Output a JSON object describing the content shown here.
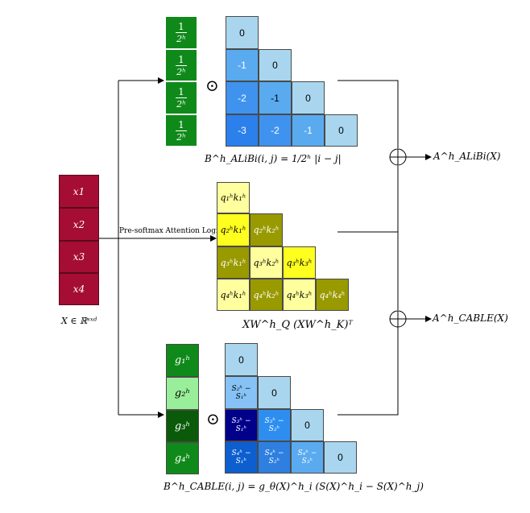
{
  "input": {
    "rows": [
      "x1",
      "x2",
      "x3",
      "x4"
    ],
    "caption": "X ∈ ℝˢˣᵈ",
    "color": "#a50d35"
  },
  "alibi": {
    "slopes": [
      {
        "num": "1",
        "den": "2ʰ"
      },
      {
        "num": "1",
        "den": "2ʰ"
      },
      {
        "num": "1",
        "den": "2ʰ"
      },
      {
        "num": "1",
        "den": "2ʰ"
      }
    ],
    "slope_color": "#0f8a1a",
    "hadamard": "⊙",
    "matrix": [
      [
        "0"
      ],
      [
        "-1",
        "0"
      ],
      [
        "-2",
        "-1",
        "0"
      ],
      [
        "-3",
        "-2",
        "-1",
        "0"
      ]
    ],
    "matrix_colors": [
      [
        "#a9d6ee"
      ],
      [
        "#5aaaf0",
        "#a9d6ee"
      ],
      [
        "#3f93ee",
        "#5aaaf0",
        "#a9d6ee"
      ],
      [
        "#2b80ec",
        "#3f93ee",
        "#5aaaf0",
        "#a9d6ee"
      ]
    ],
    "caption": "B^h_ALiBi(i, j) = 1/2ʰ |i − j|",
    "output": "A^h_ALiBi(X)"
  },
  "logits": {
    "arrow_label": "Pre-softmax Attention Logits",
    "matrix": [
      [
        "q₁ʰk₁ʰ"
      ],
      [
        "q₂ʰk₁ʰ",
        "q₂ʰk₂ʰ"
      ],
      [
        "q₃ʰk₁ʰ",
        "q₃ʰk₂ʰ",
        "q₃ʰk₃ʰ"
      ],
      [
        "q₄ʰk₁ʰ",
        "q₄ʰk₂ʰ",
        "q₄ʰk₃ʰ",
        "q₄ʰk₄ʰ"
      ]
    ],
    "matrix_colors": [
      [
        "#ffff9e"
      ],
      [
        "#ffff1f",
        "#999900"
      ],
      [
        "#999900",
        "#ffff9e",
        "#ffff1f"
      ],
      [
        "#ffff9e",
        "#999900",
        "#ffff9e",
        "#999900"
      ]
    ],
    "caption": "XW^h_Q (XW^h_K)ᵀ"
  },
  "cable": {
    "gates": [
      "g₁ʰ",
      "g₂ʰ",
      "g₃ʰ",
      "g₄ʰ"
    ],
    "gate_colors": [
      "#0f8a1a",
      "#99ee99",
      "#0a5a0a",
      "#0f8a1a"
    ],
    "hadamard": "⊙",
    "matrix": [
      [
        "0"
      ],
      [
        "S₂ʰ − S₁ʰ",
        "0"
      ],
      [
        "S₃ʰ − S₁ʰ",
        "S₃ʰ − S₂ʰ",
        "0"
      ],
      [
        "S₄ʰ − S₁ʰ",
        "S₄ʰ − S₂ʰ",
        "S₄ʰ − S₃ʰ",
        "0"
      ]
    ],
    "matrix_colors": [
      [
        "#a9d6ee"
      ],
      [
        "#86c2f5",
        "#a9d6ee"
      ],
      [
        "#00008b",
        "#2e8ef0",
        "#a9d6ee"
      ],
      [
        "#0d5fd0",
        "#2e7fe0",
        "#5aaaf0",
        "#a9d6ee"
      ]
    ],
    "caption": "B^h_CABLE(i, j) = g_θ(X)^h_i   (S(X)^h_i − S(X)^h_j)",
    "output": "A^h_CABLE(X)"
  },
  "sum_symbol": "⊕"
}
